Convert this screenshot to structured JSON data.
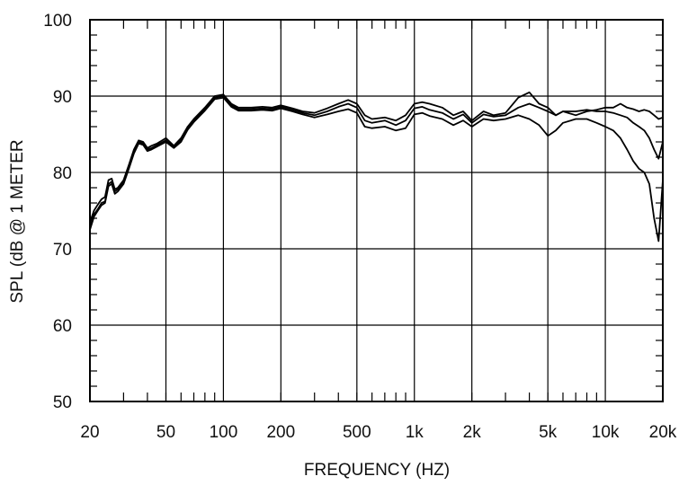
{
  "chart_data": {
    "type": "line",
    "title": "",
    "xlabel": "FREQUENCY  (HZ)",
    "ylabel": "SPL (dB @ 1 METER",
    "xscale": "log",
    "xlim": [
      20,
      20000
    ],
    "ylim": [
      50,
      100
    ],
    "grid": true,
    "legend": "none",
    "x_ticks": [
      20,
      50,
      100,
      200,
      500,
      1000,
      2000,
      5000,
      10000,
      20000
    ],
    "x_tick_labels": [
      "20",
      "50",
      "100",
      "200",
      "500",
      "1k",
      "2k",
      "5k",
      "10k",
      "20k"
    ],
    "y_ticks": [
      50,
      60,
      70,
      80,
      90,
      100
    ],
    "y_tick_labels": [
      "50",
      "60",
      "70",
      "80",
      "90",
      "100"
    ],
    "line_color": "#000000",
    "series": [
      {
        "x": [
          20,
          21,
          22,
          23,
          24,
          25,
          26,
          27,
          28,
          30,
          32,
          34,
          36,
          38,
          40,
          42,
          45,
          50,
          55,
          60,
          65,
          70,
          80,
          90,
          100,
          110,
          120,
          140,
          160,
          180,
          200,
          230,
          260,
          300,
          350,
          400,
          450,
          500,
          550,
          600,
          700,
          800,
          900,
          1000,
          1100,
          1200,
          1400,
          1600,
          1800,
          2000,
          2300,
          2600,
          3000,
          3500,
          4000,
          4500,
          5000,
          5500,
          6000,
          7000,
          8000,
          9000,
          10000,
          11000,
          12000,
          13000,
          14000,
          15000,
          16000,
          17000,
          18000,
          19000,
          20000
        ],
        "y": [
          73.5,
          75.0,
          75.8,
          76.5,
          76.8,
          79.0,
          79.2,
          77.8,
          78.0,
          79.0,
          81.0,
          83.0,
          84.2,
          84.0,
          83.2,
          83.5,
          83.8,
          84.5,
          83.5,
          84.5,
          86.0,
          87.0,
          88.5,
          90.0,
          90.2,
          89.0,
          88.5,
          88.5,
          88.6,
          88.5,
          88.8,
          88.4,
          88.0,
          87.8,
          88.4,
          89.0,
          89.5,
          89.0,
          87.5,
          87.0,
          87.2,
          86.8,
          87.5,
          89.0,
          89.2,
          89.0,
          88.5,
          87.5,
          88.0,
          86.8,
          88.0,
          87.5,
          87.8,
          89.8,
          90.5,
          89.0,
          88.5,
          87.5,
          88.0,
          87.5,
          88.0,
          88.2,
          88.5,
          88.5,
          89.0,
          88.5,
          88.3,
          88.0,
          88.2,
          88.0,
          87.5,
          87.0,
          87.2
        ]
      },
      {
        "x": [
          20,
          21,
          22,
          23,
          24,
          25,
          26,
          27,
          28,
          30,
          32,
          34,
          36,
          38,
          40,
          42,
          45,
          50,
          55,
          60,
          65,
          70,
          80,
          90,
          100,
          110,
          120,
          140,
          160,
          180,
          200,
          230,
          260,
          300,
          350,
          400,
          450,
          500,
          550,
          600,
          700,
          800,
          900,
          1000,
          1100,
          1200,
          1400,
          1600,
          1800,
          2000,
          2300,
          2600,
          3000,
          3500,
          4000,
          4500,
          5000,
          5500,
          6000,
          7000,
          8000,
          9000,
          10000,
          11000,
          12000,
          13000,
          14000,
          15000,
          16000,
          17000,
          18000,
          19000,
          20000
        ],
        "y": [
          72.8,
          74.5,
          75.2,
          76.0,
          76.2,
          78.5,
          78.8,
          77.5,
          77.8,
          78.8,
          80.8,
          82.8,
          84.0,
          83.8,
          83.0,
          83.2,
          83.6,
          84.2,
          83.3,
          84.2,
          85.8,
          86.8,
          88.3,
          89.8,
          90.0,
          88.8,
          88.3,
          88.3,
          88.4,
          88.3,
          88.6,
          88.2,
          87.8,
          87.5,
          88.0,
          88.6,
          89.0,
          88.5,
          86.8,
          86.5,
          86.8,
          86.2,
          86.8,
          88.4,
          88.6,
          88.2,
          87.8,
          87.0,
          87.6,
          86.5,
          87.6,
          87.3,
          87.5,
          88.5,
          89.0,
          88.5,
          88.0,
          87.5,
          88.0,
          88.0,
          88.2,
          88.0,
          88.0,
          87.8,
          87.5,
          87.2,
          86.5,
          86.0,
          85.5,
          84.5,
          83.0,
          81.8,
          84.0
        ]
      },
      {
        "x": [
          20,
          21,
          22,
          23,
          24,
          25,
          26,
          27,
          28,
          30,
          32,
          34,
          36,
          38,
          40,
          42,
          45,
          50,
          55,
          60,
          65,
          70,
          80,
          90,
          100,
          110,
          120,
          140,
          160,
          180,
          200,
          230,
          260,
          300,
          350,
          400,
          450,
          500,
          550,
          600,
          700,
          800,
          900,
          1000,
          1100,
          1200,
          1400,
          1600,
          1800,
          2000,
          2300,
          2600,
          3000,
          3500,
          4000,
          4500,
          5000,
          5500,
          6000,
          7000,
          8000,
          9000,
          10000,
          11000,
          12000,
          13000,
          14000,
          15000,
          16000,
          17000,
          18000,
          19000,
          20000
        ],
        "y": [
          72.5,
          74.2,
          75.0,
          75.7,
          76.0,
          78.2,
          78.5,
          77.2,
          77.5,
          78.5,
          80.5,
          82.5,
          83.8,
          83.6,
          82.8,
          83.0,
          83.4,
          84.0,
          83.2,
          84.0,
          85.6,
          86.6,
          88.1,
          89.6,
          89.8,
          88.6,
          88.1,
          88.1,
          88.2,
          88.1,
          88.4,
          88.0,
          87.6,
          87.2,
          87.6,
          88.0,
          88.3,
          87.8,
          86.0,
          85.8,
          86.0,
          85.5,
          85.8,
          87.6,
          87.8,
          87.4,
          87.0,
          86.2,
          86.8,
          86.0,
          87.0,
          86.8,
          87.0,
          87.5,
          87.0,
          86.2,
          84.8,
          85.5,
          86.5,
          87.0,
          87.0,
          86.5,
          86.0,
          85.5,
          84.5,
          83.0,
          81.5,
          80.5,
          80.0,
          78.5,
          74.0,
          71.0,
          79.0
        ]
      }
    ]
  }
}
